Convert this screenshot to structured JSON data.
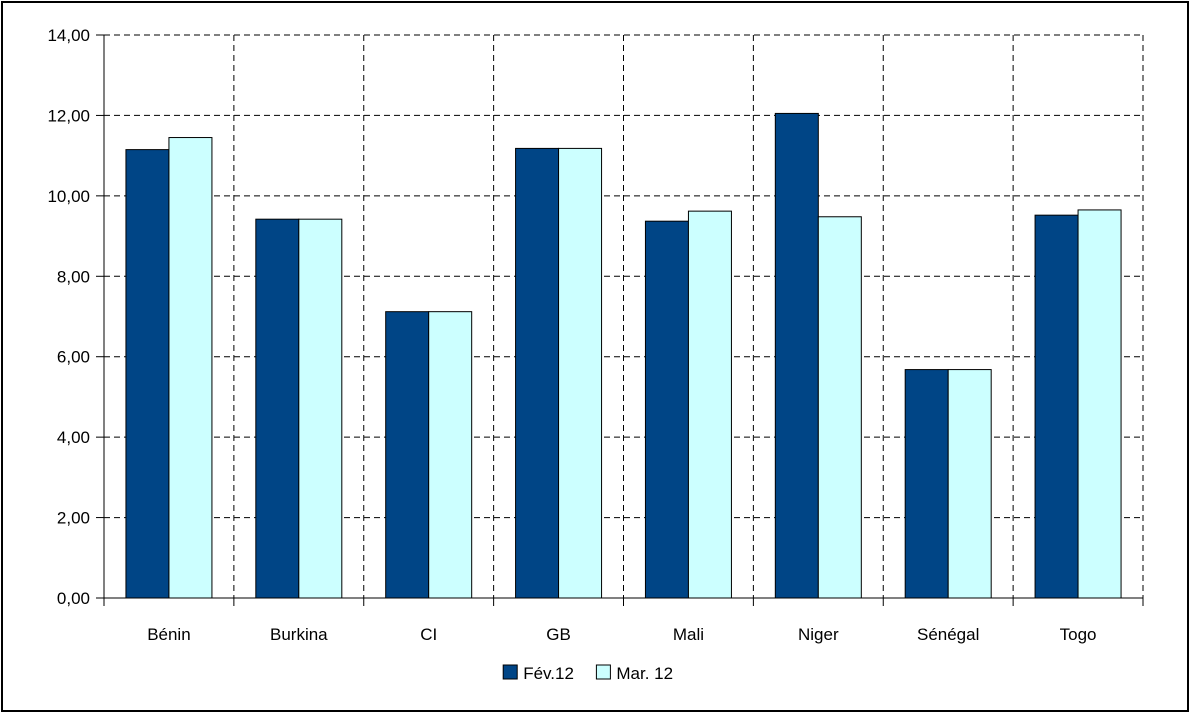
{
  "chart_data": {
    "type": "bar",
    "categories": [
      "Bénin",
      "Burkina",
      "CI",
      "GB",
      "Mali",
      "Niger",
      "Sénégal",
      "Togo"
    ],
    "series": [
      {
        "name": "Fév.12",
        "color": "#004586",
        "values": [
          11.15,
          9.42,
          7.12,
          11.18,
          9.37,
          12.05,
          5.68,
          9.52
        ]
      },
      {
        "name": "Mar. 12",
        "color": "#ccffff",
        "values": [
          11.45,
          9.42,
          7.12,
          11.18,
          9.62,
          9.48,
          5.68,
          9.65
        ]
      }
    ],
    "yticks": [
      "0,00",
      "2,00",
      "4,00",
      "6,00",
      "8,00",
      "10,00",
      "12,00",
      "14,00"
    ],
    "ylim": [
      0,
      14
    ],
    "grid": true,
    "legend_position": "bottom"
  }
}
